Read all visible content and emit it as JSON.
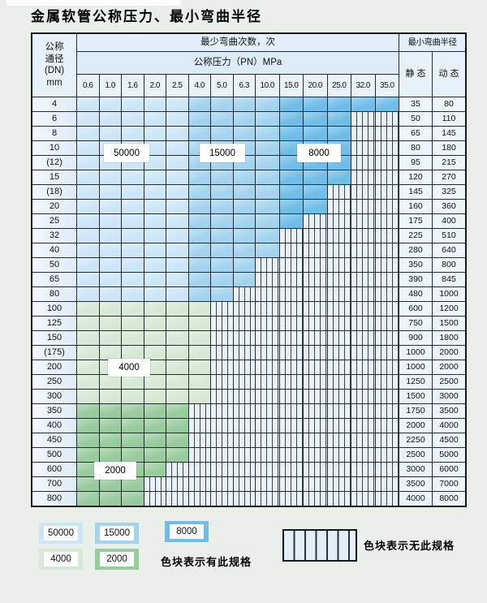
{
  "title": "金属软管公称压力、最小弯曲半径",
  "table": {
    "corner": {
      "lines": [
        "公称",
        "通径",
        "(DN)",
        "mm"
      ]
    },
    "bend_cycles_header": "最少弯曲次数，次",
    "pressure_header": "公称压力（PN）MPa",
    "pressure_columns": [
      "0.6",
      "1.0",
      "1.6",
      "2.0",
      "2.5",
      "4.0",
      "5.0",
      "6.3",
      "10.0",
      "15.0",
      "20.0",
      "25.0",
      "32.0",
      "35.0"
    ],
    "radius_header": "最小弯曲半径",
    "static_header": "静 态",
    "dynamic_header": "动 态",
    "blue_band_column_ranges": {
      "50000": [
        1,
        5
      ],
      "15000": [
        6,
        9
      ],
      "8000": [
        10,
        14
      ]
    },
    "rows": [
      {
        "dn": "4",
        "zone": "blue",
        "available": 14,
        "static": "35",
        "dynamic": "80"
      },
      {
        "dn": "6",
        "zone": "blue",
        "available": 12,
        "static": "50",
        "dynamic": "110"
      },
      {
        "dn": "8",
        "zone": "blue",
        "available": 12,
        "static": "65",
        "dynamic": "145"
      },
      {
        "dn": "10",
        "zone": "blue",
        "available": 12,
        "static": "80",
        "dynamic": "180"
      },
      {
        "dn": "(12)",
        "zone": "blue",
        "available": 12,
        "static": "95",
        "dynamic": "215"
      },
      {
        "dn": "15",
        "zone": "blue",
        "available": 12,
        "static": "120",
        "dynamic": "270"
      },
      {
        "dn": "(18)",
        "zone": "blue",
        "available": 11,
        "static": "145",
        "dynamic": "325"
      },
      {
        "dn": "20",
        "zone": "blue",
        "available": 11,
        "static": "160",
        "dynamic": "360"
      },
      {
        "dn": "25",
        "zone": "blue",
        "available": 10,
        "static": "175",
        "dynamic": "400"
      },
      {
        "dn": "32",
        "zone": "blue",
        "available": 9,
        "static": "225",
        "dynamic": "510"
      },
      {
        "dn": "40",
        "zone": "blue",
        "available": 9,
        "static": "280",
        "dynamic": "640"
      },
      {
        "dn": "50",
        "zone": "blue",
        "available": 8,
        "static": "350",
        "dynamic": "800"
      },
      {
        "dn": "65",
        "zone": "blue",
        "available": 8,
        "static": "390",
        "dynamic": "845"
      },
      {
        "dn": "80",
        "zone": "blue",
        "available": 7,
        "static": "480",
        "dynamic": "1000"
      },
      {
        "dn": "100",
        "zone": "green4000",
        "available": 6,
        "static": "600",
        "dynamic": "1200"
      },
      {
        "dn": "125",
        "zone": "green4000",
        "available": 6,
        "static": "750",
        "dynamic": "1500"
      },
      {
        "dn": "150",
        "zone": "green4000",
        "available": 6,
        "static": "900",
        "dynamic": "1800"
      },
      {
        "dn": "(175)",
        "zone": "green4000",
        "available": 6,
        "static": "1000",
        "dynamic": "2000"
      },
      {
        "dn": "200",
        "zone": "green4000",
        "available": 6,
        "static": "1000",
        "dynamic": "2000"
      },
      {
        "dn": "250",
        "zone": "green4000",
        "available": 6,
        "static": "1250",
        "dynamic": "2500"
      },
      {
        "dn": "300",
        "zone": "green4000",
        "available": 6,
        "static": "1500",
        "dynamic": "3000"
      },
      {
        "dn": "350",
        "zone": "green2000",
        "available": 5,
        "static": "1750",
        "dynamic": "3500"
      },
      {
        "dn": "400",
        "zone": "green2000",
        "available": 5,
        "static": "2000",
        "dynamic": "4000"
      },
      {
        "dn": "450",
        "zone": "green2000",
        "available": 5,
        "static": "2250",
        "dynamic": "4500"
      },
      {
        "dn": "500",
        "zone": "green2000",
        "available": 5,
        "static": "2500",
        "dynamic": "5000"
      },
      {
        "dn": "600",
        "zone": "green2000",
        "available": 4,
        "static": "3000",
        "dynamic": "6000"
      },
      {
        "dn": "700",
        "zone": "green2000",
        "available": 3,
        "static": "3500",
        "dynamic": "7000"
      },
      {
        "dn": "800",
        "zone": "green2000",
        "available": 3,
        "static": "4000",
        "dynamic": "8000"
      }
    ]
  },
  "overlays": {
    "o50000": "50000",
    "o15000": "15000",
    "o8000": "8000",
    "o4000": "4000",
    "o2000": "2000"
  },
  "legend": {
    "swatches": {
      "s50000": "50000",
      "s15000": "15000",
      "s8000": "8000",
      "s4000": "4000",
      "s2000": "2000"
    },
    "has_spec_note": "色块表示有此规格",
    "no_spec_note": "色块表示无此规格"
  },
  "colors": {
    "band_50000": "#cde6f7",
    "band_15000": "#a4d3ef",
    "band_8000": "#6fbde8",
    "band_4000": "#d6e9d5",
    "band_2000": "#98cb9e",
    "hatch_bg": "#e9f1f9",
    "grid_line": "#272b30"
  }
}
